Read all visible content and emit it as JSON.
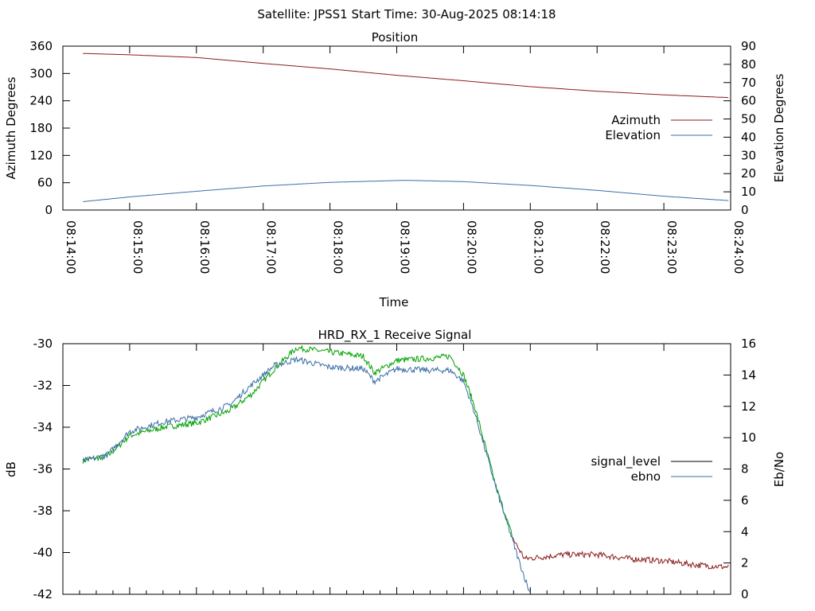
{
  "header": "Satellite: JPSS1    Start Time: 30-Aug-2025 08:14:18",
  "chart_data": [
    {
      "type": "line",
      "title": "Position",
      "xlabel": "Time",
      "ylabel": "Azimuth Degrees",
      "y2label": "Elevation Degrees",
      "x_ticks": [
        "08:14:00",
        "08:15:00",
        "08:16:00",
        "08:17:00",
        "08:18:00",
        "08:19:00",
        "08:20:00",
        "08:21:00",
        "08:22:00",
        "08:23:00",
        "08:24:00"
      ],
      "xlim": [
        "08:14:00",
        "08:24:00"
      ],
      "ylim": [
        0,
        360
      ],
      "y_ticks": [
        "0",
        "60",
        "120",
        "180",
        "240",
        "300",
        "360"
      ],
      "y2lim": [
        0,
        90
      ],
      "y2_ticks": [
        "0",
        "10",
        "20",
        "30",
        "40",
        "50",
        "60",
        "70",
        "80",
        "90"
      ],
      "legend_position": "right",
      "grid": false,
      "series": [
        {
          "name": "Azimuth",
          "axis": "y",
          "color": "#8b1a1a",
          "x": [
            "08:14:18",
            "08:15:00",
            "08:16:00",
            "08:17:00",
            "08:18:00",
            "08:19:00",
            "08:20:00",
            "08:21:00",
            "08:22:00",
            "08:23:00",
            "08:23:58"
          ],
          "y": [
            344,
            341,
            335,
            322,
            310,
            296,
            284,
            271,
            261,
            253,
            247
          ]
        },
        {
          "name": "Elevation",
          "axis": "y2",
          "color": "#3a6ea5",
          "x": [
            "08:14:18",
            "08:15:00",
            "08:16:00",
            "08:17:00",
            "08:18:00",
            "08:19:00",
            "08:19:10",
            "08:20:00",
            "08:21:00",
            "08:22:00",
            "08:23:00",
            "08:23:58"
          ],
          "y": [
            4.6,
            7.2,
            10.3,
            13.2,
            15.2,
            16.2,
            16.3,
            15.6,
            13.5,
            10.8,
            7.6,
            5.2
          ]
        }
      ]
    },
    {
      "type": "line",
      "title": "HRD_RX_1 Receive Signal",
      "ylabel": "dB",
      "y2label": "Eb/No",
      "ylim": [
        -42,
        -30
      ],
      "y_ticks": [
        "-30",
        "-32",
        "-34",
        "-36",
        "-38",
        "-40",
        "-42"
      ],
      "y2lim": [
        0,
        16
      ],
      "y2_ticks": [
        "0",
        "2",
        "4",
        "6",
        "8",
        "10",
        "12",
        "14",
        "16"
      ],
      "legend_position": "right",
      "grid": false,
      "series": [
        {
          "name": "signal_level",
          "axis": "y",
          "color": "#00a000",
          "legend_color": "#000000",
          "low_signal_color": "#8b1a1a",
          "x": [
            "08:14:18",
            "08:14:40",
            "08:15:00",
            "08:15:30",
            "08:16:00",
            "08:16:30",
            "08:16:50",
            "08:17:10",
            "08:17:30",
            "08:18:00",
            "08:18:30",
            "08:18:40",
            "08:19:00",
            "08:19:30",
            "08:19:48",
            "08:20:00",
            "08:20:10",
            "08:20:30",
            "08:20:45",
            "08:20:55",
            "08:21:30",
            "08:22:00",
            "08:22:30",
            "08:23:00",
            "08:23:30",
            "08:23:58"
          ],
          "y": [
            -35.6,
            -35.4,
            -34.4,
            -34.0,
            -33.8,
            -33.2,
            -32.4,
            -31.2,
            -30.2,
            -30.4,
            -30.6,
            -31.4,
            -30.8,
            -30.7,
            -30.6,
            -31.5,
            -33.0,
            -37.0,
            -39.4,
            -40.3,
            -40.1,
            -40.1,
            -40.3,
            -40.4,
            -40.6,
            -40.7
          ]
        },
        {
          "name": "ebno",
          "axis": "y2",
          "color": "#3a6ea5",
          "x": [
            "08:14:18",
            "08:14:40",
            "08:15:00",
            "08:15:30",
            "08:16:00",
            "08:16:30",
            "08:16:50",
            "08:17:10",
            "08:17:30",
            "08:18:00",
            "08:18:30",
            "08:18:40",
            "08:19:00",
            "08:19:30",
            "08:19:48",
            "08:20:00",
            "08:20:10",
            "08:20:30",
            "08:20:50",
            "08:21:00"
          ],
          "y": [
            8.5,
            8.9,
            10.4,
            11.0,
            11.3,
            12.1,
            13.4,
            14.6,
            15.0,
            14.5,
            14.4,
            13.6,
            14.4,
            14.3,
            14.3,
            13.6,
            11.6,
            6.6,
            2.1,
            0
          ]
        }
      ]
    }
  ]
}
